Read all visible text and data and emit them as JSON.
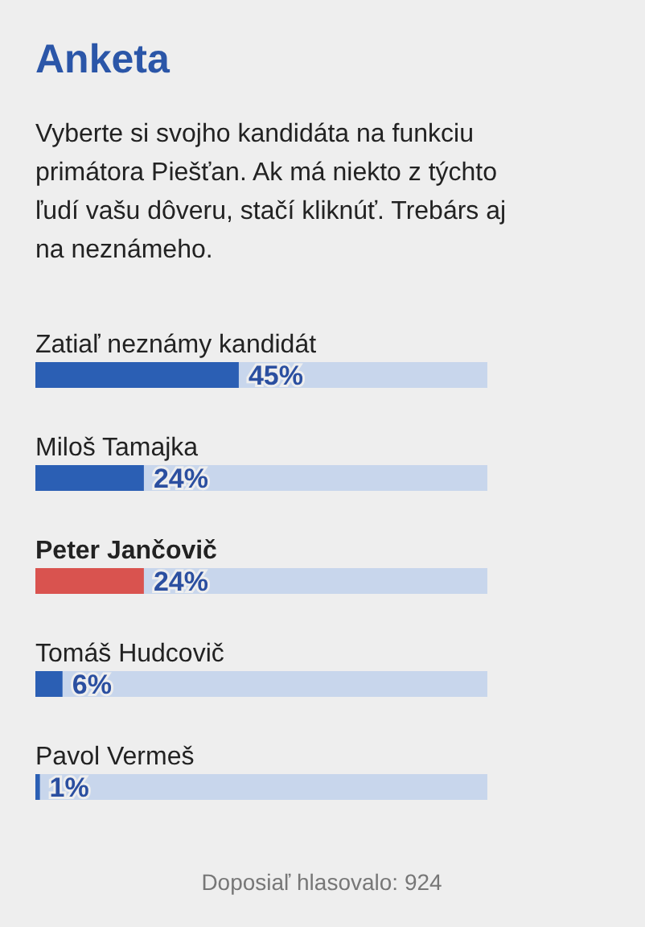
{
  "chart_data": {
    "type": "bar",
    "orientation": "horizontal",
    "title": "Anketa",
    "subtitle": "Vyberte si svojho kandidáta na funkciu primátora Piešťan. Ak má niekto z týchto ľudí vašu dôveru, stačí kliknúť. Trebárs aj na neznámeho.",
    "categories": [
      "Zatiaľ neznámy kandidát",
      "Miloš Tamajka",
      "Peter Jančovič",
      "Tomáš Hudcovič",
      "Pavol Vermeš"
    ],
    "values": [
      45,
      24,
      24,
      6,
      1
    ],
    "colors": [
      "#2b5fb4",
      "#2b5fb4",
      "#d9534f",
      "#2b5fb4",
      "#2b5fb4"
    ],
    "value_labels": [
      "45%",
      "24%",
      "24%",
      "6%",
      "1%"
    ],
    "xlim": [
      0,
      100
    ],
    "tick_labels": false,
    "annotations": [
      "Doposiaľ hlasovalo: 924"
    ]
  }
}
